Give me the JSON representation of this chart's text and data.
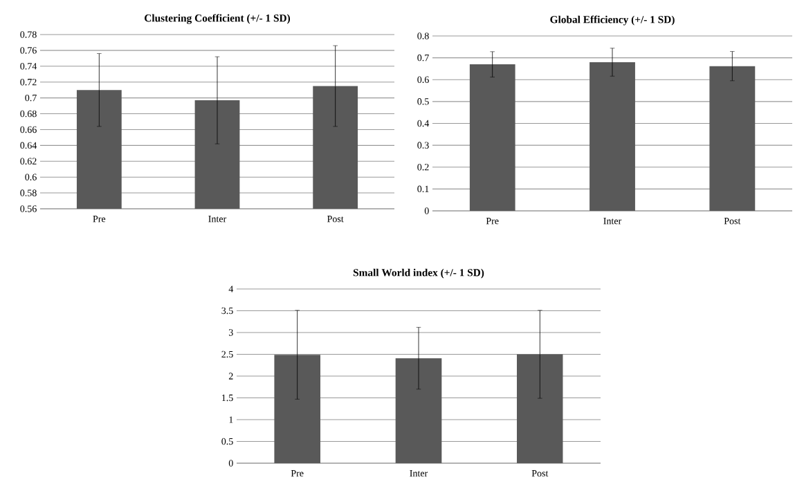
{
  "chart_data": [
    {
      "type": "bar",
      "title": "Clustering Coefficient (+/- 1 SD)",
      "categories": [
        "Pre",
        "Inter",
        "Post"
      ],
      "values": [
        0.71,
        0.697,
        0.715
      ],
      "errors": [
        0.046,
        0.055,
        0.051
      ],
      "color": "#595959",
      "ylim": [
        0.56,
        0.78
      ],
      "yticks": [
        0.56,
        0.58,
        0.6,
        0.62,
        0.64,
        0.66,
        0.68,
        0.7,
        0.72,
        0.74,
        0.76,
        0.78
      ],
      "grid": "y"
    },
    {
      "type": "bar",
      "title": "Global Efficiency (+/- 1 SD)",
      "categories": [
        "Pre",
        "Inter",
        "Post"
      ],
      "values": [
        0.67,
        0.68,
        0.662
      ],
      "errors": [
        0.058,
        0.064,
        0.067
      ],
      "color": "#595959",
      "ylim": [
        0,
        0.8
      ],
      "yticks": [
        0,
        0.1,
        0.2,
        0.3,
        0.4,
        0.5,
        0.6,
        0.7,
        0.8
      ],
      "grid": "y"
    },
    {
      "type": "bar",
      "title": "Small World index (+/- 1 SD)",
      "categories": [
        "Pre",
        "Inter",
        "Post"
      ],
      "values": [
        2.49,
        2.41,
        2.5
      ],
      "errors": [
        1.02,
        0.71,
        1.01
      ],
      "color": "#595959",
      "ylim": [
        0,
        4
      ],
      "yticks": [
        0,
        0.5,
        1,
        1.5,
        2,
        2.5,
        3,
        3.5,
        4
      ],
      "grid": "y"
    }
  ]
}
